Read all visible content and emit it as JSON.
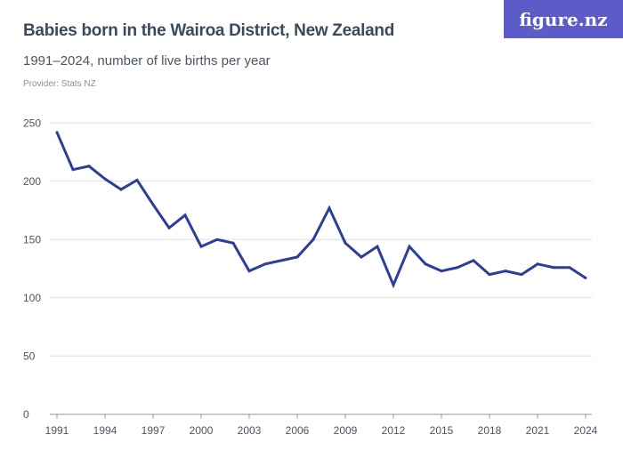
{
  "header": {
    "title": "Babies born in the Wairoa District, New Zealand",
    "subtitle": "1991–2024, number of live births per year",
    "provider": "Provider: Stats NZ",
    "logo": "figure.nz"
  },
  "colors": {
    "line": "#2b3f99",
    "grid": "#dddddd",
    "logo_bg": "#5b5cc8"
  },
  "chart_data": {
    "type": "line",
    "x": [
      1991,
      1992,
      1993,
      1994,
      1995,
      1996,
      1997,
      1998,
      1999,
      2000,
      2001,
      2002,
      2003,
      2004,
      2005,
      2006,
      2007,
      2008,
      2009,
      2010,
      2011,
      2012,
      2013,
      2014,
      2015,
      2016,
      2017,
      2018,
      2019,
      2020,
      2021,
      2022,
      2023,
      2024
    ],
    "series": [
      {
        "values": [
          242,
          210,
          213,
          202,
          193,
          201,
          180,
          160,
          171,
          144,
          150,
          147,
          123,
          129,
          132,
          135,
          150,
          177,
          147,
          135,
          144,
          111,
          144,
          129,
          123,
          126,
          132,
          120,
          123,
          120,
          129,
          126,
          126,
          117
        ]
      }
    ],
    "ylim": [
      0,
      250
    ],
    "xlim": [
      1991,
      2024
    ],
    "yticks": [
      "0",
      "50",
      "100",
      "150",
      "200",
      "250"
    ],
    "xticks": [
      "1991",
      "1994",
      "1997",
      "2000",
      "2003",
      "2006",
      "2009",
      "2012",
      "2015",
      "2018",
      "2021",
      "2024"
    ],
    "grid": true,
    "legend": "none"
  }
}
